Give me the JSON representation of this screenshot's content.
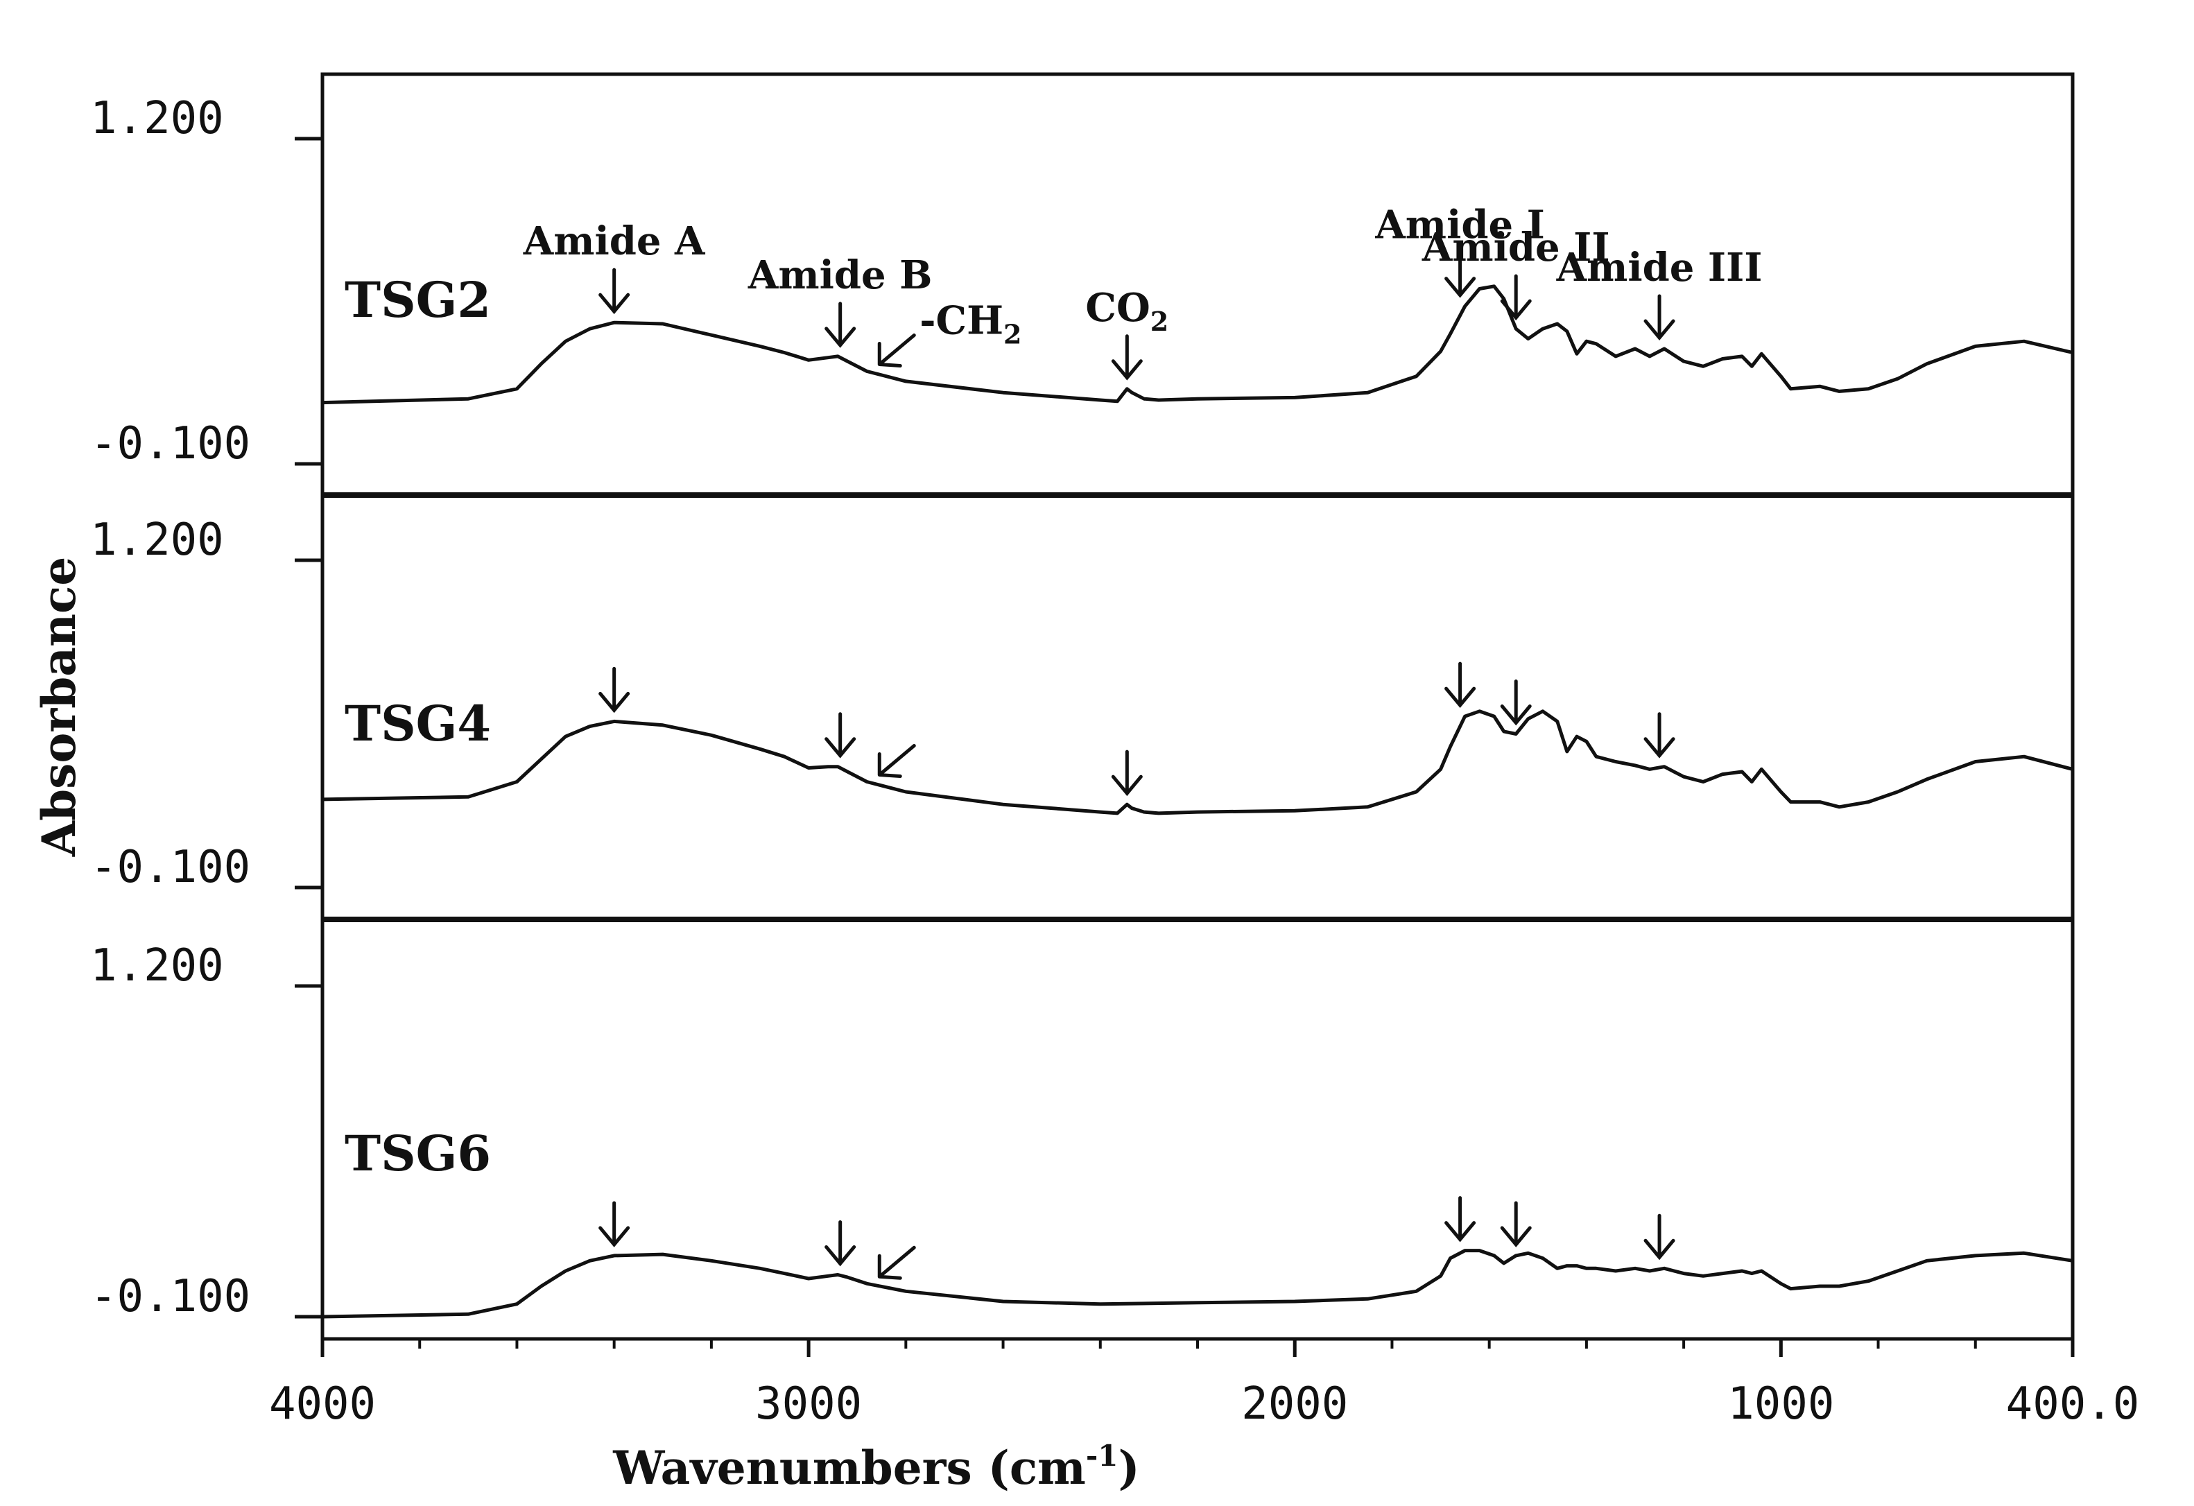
{
  "chart_data": {
    "type": "line",
    "title": "",
    "xlabel": "Wavenumbers (cm-1)",
    "xlabel_parts": {
      "base": "Wavenumbers (cm",
      "sup": "-1",
      "close": ")"
    },
    "ylabel": "Absorbance",
    "xlim": [
      4000,
      400
    ],
    "x_reversed": true,
    "x_tick_labels": [
      {
        "value": 4000,
        "label": "4000"
      },
      {
        "value": 3000,
        "label": "3000"
      },
      {
        "value": 2000,
        "label": "2000"
      },
      {
        "value": 1000,
        "label": "1000"
      },
      {
        "value": 400,
        "label": "400.0"
      }
    ],
    "panels": [
      {
        "name": "TSG2",
        "ylim": [
          -0.1,
          1.2
        ],
        "y_tick_labels": [
          "1.200",
          "-0.100"
        ],
        "x": [
          4000,
          3700,
          3600,
          3550,
          3500,
          3450,
          3400,
          3300,
          3200,
          3100,
          3050,
          3000,
          2960,
          2940,
          2920,
          2880,
          2800,
          2600,
          2400,
          2365,
          2345,
          2335,
          2310,
          2280,
          2200,
          2000,
          1850,
          1750,
          1700,
          1680,
          1650,
          1620,
          1590,
          1570,
          1545,
          1520,
          1490,
          1460,
          1440,
          1420,
          1400,
          1380,
          1340,
          1300,
          1270,
          1240,
          1200,
          1160,
          1120,
          1080,
          1060,
          1040,
          1000,
          980,
          920,
          880,
          820,
          760,
          700,
          600,
          500,
          400
        ],
        "y": [
          0.145,
          0.16,
          0.2,
          0.3,
          0.39,
          0.44,
          0.465,
          0.46,
          0.415,
          0.37,
          0.345,
          0.315,
          0.325,
          0.33,
          0.31,
          0.27,
          0.23,
          0.185,
          0.155,
          0.15,
          0.2,
          0.185,
          0.16,
          0.155,
          0.16,
          0.165,
          0.185,
          0.25,
          0.35,
          0.42,
          0.53,
          0.6,
          0.61,
          0.56,
          0.44,
          0.4,
          0.44,
          0.46,
          0.43,
          0.34,
          0.39,
          0.38,
          0.33,
          0.36,
          0.33,
          0.36,
          0.31,
          0.29,
          0.32,
          0.33,
          0.29,
          0.34,
          0.25,
          0.2,
          0.21,
          0.19,
          0.2,
          0.24,
          0.3,
          0.37,
          0.39,
          0.345
        ]
      },
      {
        "name": "TSG4",
        "ylim": [
          -0.1,
          1.2
        ],
        "y_tick_labels": [
          "1.200",
          "-0.100"
        ],
        "x": [
          4000,
          3700,
          3600,
          3550,
          3500,
          3450,
          3400,
          3300,
          3200,
          3100,
          3050,
          3000,
          2960,
          2940,
          2920,
          2880,
          2800,
          2600,
          2400,
          2365,
          2345,
          2335,
          2310,
          2280,
          2200,
          2000,
          1850,
          1750,
          1700,
          1680,
          1650,
          1620,
          1590,
          1570,
          1545,
          1520,
          1490,
          1460,
          1440,
          1420,
          1400,
          1380,
          1340,
          1300,
          1270,
          1240,
          1200,
          1160,
          1120,
          1080,
          1060,
          1040,
          1000,
          980,
          920,
          880,
          820,
          760,
          700,
          600,
          500,
          400
        ],
        "y": [
          0.25,
          0.26,
          0.32,
          0.41,
          0.5,
          0.54,
          0.56,
          0.545,
          0.505,
          0.45,
          0.42,
          0.375,
          0.38,
          0.38,
          0.36,
          0.32,
          0.28,
          0.23,
          0.2,
          0.195,
          0.23,
          0.215,
          0.2,
          0.195,
          0.2,
          0.205,
          0.22,
          0.28,
          0.37,
          0.46,
          0.58,
          0.6,
          0.58,
          0.52,
          0.51,
          0.57,
          0.6,
          0.56,
          0.44,
          0.5,
          0.48,
          0.42,
          0.4,
          0.385,
          0.37,
          0.38,
          0.34,
          0.32,
          0.35,
          0.36,
          0.32,
          0.37,
          0.28,
          0.24,
          0.24,
          0.22,
          0.24,
          0.28,
          0.33,
          0.4,
          0.42,
          0.37
        ]
      },
      {
        "name": "TSG6",
        "ylim": [
          -0.1,
          1.2
        ],
        "y_tick_labels": [
          "1.200",
          "-0.100"
        ],
        "x": [
          4000,
          3700,
          3600,
          3550,
          3500,
          3450,
          3400,
          3300,
          3200,
          3100,
          3050,
          3000,
          2960,
          2940,
          2920,
          2880,
          2800,
          2600,
          2400,
          2200,
          2000,
          1850,
          1750,
          1700,
          1680,
          1650,
          1620,
          1590,
          1570,
          1545,
          1520,
          1490,
          1460,
          1440,
          1420,
          1400,
          1380,
          1340,
          1300,
          1270,
          1240,
          1200,
          1160,
          1120,
          1080,
          1060,
          1040,
          1000,
          980,
          920,
          880,
          820,
          760,
          700,
          600,
          500,
          400
        ],
        "y": [
          -0.1,
          -0.09,
          -0.05,
          0.02,
          0.08,
          0.12,
          0.14,
          0.145,
          0.12,
          0.09,
          0.07,
          0.05,
          0.06,
          0.065,
          0.055,
          0.03,
          0.0,
          -0.04,
          -0.05,
          -0.045,
          -0.04,
          -0.03,
          0.0,
          0.06,
          0.13,
          0.16,
          0.16,
          0.14,
          0.11,
          0.14,
          0.15,
          0.13,
          0.09,
          0.1,
          0.1,
          0.09,
          0.09,
          0.08,
          0.09,
          0.08,
          0.09,
          0.07,
          0.06,
          0.07,
          0.08,
          0.07,
          0.08,
          0.03,
          0.01,
          0.02,
          0.02,
          0.04,
          0.08,
          0.12,
          0.14,
          0.15,
          0.12
        ]
      }
    ],
    "annotations": [
      {
        "panel": 0,
        "text": "Amide A",
        "x": 3400,
        "dir": "down"
      },
      {
        "panel": 0,
        "text": "Amide B",
        "x": 2935,
        "dir": "down"
      },
      {
        "panel": 0,
        "text": "-CH",
        "sub": "2",
        "x": 2860,
        "dir": "diag"
      },
      {
        "panel": 0,
        "text": "CO",
        "sub": "2",
        "x": 2345,
        "dir": "down"
      },
      {
        "panel": 0,
        "text": "Amide I",
        "x": 1660,
        "dir": "down"
      },
      {
        "panel": 0,
        "text": "Amide II",
        "x": 1545,
        "dir": "down"
      },
      {
        "panel": 0,
        "text": "Amide III",
        "x": 1250,
        "dir": "down"
      },
      {
        "panel": 1,
        "text": "",
        "x": 3400,
        "dir": "down"
      },
      {
        "panel": 1,
        "text": "",
        "x": 2935,
        "dir": "down"
      },
      {
        "panel": 1,
        "text": "",
        "x": 2860,
        "dir": "diag"
      },
      {
        "panel": 1,
        "text": "",
        "x": 2345,
        "dir": "down"
      },
      {
        "panel": 1,
        "text": "",
        "x": 1660,
        "dir": "down"
      },
      {
        "panel": 1,
        "text": "",
        "x": 1545,
        "dir": "down"
      },
      {
        "panel": 1,
        "text": "",
        "x": 1250,
        "dir": "down"
      },
      {
        "panel": 2,
        "text": "",
        "x": 3400,
        "dir": "down"
      },
      {
        "panel": 2,
        "text": "",
        "x": 2935,
        "dir": "down"
      },
      {
        "panel": 2,
        "text": "",
        "x": 2860,
        "dir": "diag"
      },
      {
        "panel": 2,
        "text": "",
        "x": 1660,
        "dir": "down"
      },
      {
        "panel": 2,
        "text": "",
        "x": 1545,
        "dir": "down"
      },
      {
        "panel": 2,
        "text": "",
        "x": 1250,
        "dir": "down"
      }
    ]
  }
}
